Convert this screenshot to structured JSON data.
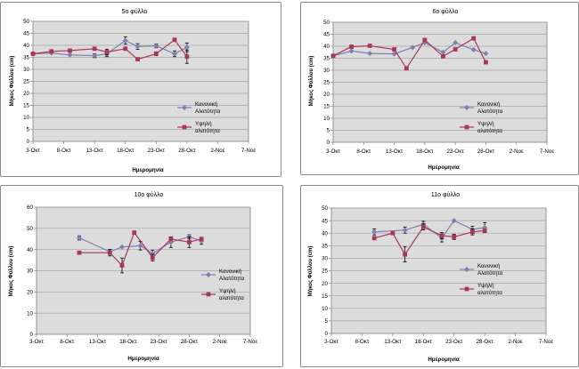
{
  "colors": {
    "normal": "#7f7fb0",
    "high": "#a8365f",
    "plot_bg": "#dcdcdc",
    "grid": "#a6a6a6",
    "axis": "#808080",
    "text": "#000000"
  },
  "chart_data": [
    {
      "type": "line",
      "title": "5ο φύλλο",
      "xlabel": "Ημερομηνία",
      "ylabel": "Μήκος Φύλλου (cm)",
      "x_tick_labels": [
        "3-Οκτ",
        "8-Οκτ",
        "13-Οκτ",
        "18-Οκτ",
        "23-Οκτ",
        "28-Οκτ",
        "2-Νοε",
        "7-Νοε"
      ],
      "x_range": [
        0,
        35
      ],
      "ylim": [
        0,
        50
      ],
      "y_ticks": [
        0,
        5,
        10,
        15,
        20,
        25,
        30,
        35,
        40,
        45,
        50
      ],
      "y_tick_labels": [
        "0",
        "5",
        "10",
        "15",
        "20",
        "25",
        "30",
        "35",
        "40",
        "45",
        "50"
      ],
      "legend_position": "right",
      "series": [
        {
          "name": "Κανονική Αλατότητα",
          "name_lines": [
            "Κανονική",
            "Αλατότητα"
          ],
          "marker": "diamond",
          "x": [
            0,
            3,
            6,
            10,
            12,
            15,
            17,
            20,
            23,
            25
          ],
          "y": [
            36.5,
            36.8,
            36.0,
            35.7,
            36.5,
            42.0,
            39.5,
            39.8,
            36.5,
            39.2
          ],
          "err": [
            0,
            0,
            0,
            0.8,
            1.2,
            1.5,
            1.2,
            0.8,
            1.2,
            1.8
          ]
        },
        {
          "name": "Υψηλή αλατότητα",
          "name_lines": [
            "Υψηλή",
            "αλατότητα"
          ],
          "marker": "square",
          "x": [
            0,
            3,
            6,
            10,
            12,
            15,
            17,
            20,
            23,
            25
          ],
          "y": [
            36.5,
            37.5,
            37.8,
            38.6,
            37.2,
            38.6,
            34.2,
            36.5,
            42.3,
            35.3
          ],
          "err": [
            0,
            0,
            0,
            0,
            1.2,
            0,
            0,
            0.8,
            0,
            2.8
          ]
        }
      ]
    },
    {
      "type": "line",
      "title": "6ο φύλλο",
      "xlabel": "Ημερομηνία",
      "ylabel": "Μήκος Φύλλου (cm)",
      "x_tick_labels": [
        "3-Οκτ",
        "8-Οκτ",
        "13-Οκτ",
        "18-Οκτ",
        "23-Οκτ",
        "28-Οκτ",
        "2-Νοε",
        "7-Νοε"
      ],
      "x_range": [
        0,
        35
      ],
      "ylim": [
        0,
        50
      ],
      "y_ticks": [
        0,
        5,
        10,
        15,
        20,
        25,
        30,
        35,
        40,
        45,
        50
      ],
      "y_tick_labels": [
        "0",
        "5",
        "10",
        "15",
        "20",
        "25",
        "30",
        "35",
        "40",
        "45",
        "50"
      ],
      "legend_position": "right",
      "series": [
        {
          "name": "Κανονική Αλατότητα",
          "name_lines": [
            "Κανονική",
            "Αλατότητα"
          ],
          "marker": "diamond",
          "x": [
            0,
            3,
            6,
            10,
            13,
            15,
            18,
            20,
            23,
            25
          ],
          "y": [
            36.0,
            38.0,
            37.0,
            36.8,
            39.5,
            41.5,
            37.5,
            41.5,
            38.5,
            37.0
          ],
          "err": [
            0,
            0,
            0,
            0,
            0,
            0,
            0,
            0,
            0,
            0
          ]
        },
        {
          "name": "Υψηλή αλατότητα",
          "name_lines": [
            "Υψηλή",
            "αλατότητα"
          ],
          "marker": "square",
          "x": [
            0,
            3,
            6,
            10,
            12,
            15,
            18,
            20,
            23,
            25
          ],
          "y": [
            36.0,
            39.8,
            40.2,
            38.7,
            30.8,
            42.6,
            35.8,
            38.7,
            43.3,
            33.3
          ],
          "err": [
            0,
            0,
            0,
            0,
            0,
            0,
            0,
            0,
            0,
            0
          ]
        }
      ]
    },
    {
      "type": "line",
      "title": "10ο φύλλο",
      "xlabel": "Ημερομηνία",
      "ylabel": "Μήκος Φύλλου (cm)",
      "x_tick_labels": [
        "3-Οκτ",
        "8-Οκτ",
        "13-Οκτ",
        "18-Οκτ",
        "23-Οκτ",
        "28-Οκτ",
        "2-Νοε",
        "7-Νοε"
      ],
      "x_range": [
        0,
        35
      ],
      "ylim": [
        0,
        60
      ],
      "y_ticks": [
        0,
        10,
        20,
        30,
        40,
        50,
        60
      ],
      "y_tick_labels": [
        "0",
        "10",
        "20",
        "30",
        "40",
        "50",
        "60"
      ],
      "legend_position": "right",
      "series": [
        {
          "name": "Κανονική Αλατότητα",
          "name_lines": [
            "Κανονική",
            "Αλατότητα"
          ],
          "marker": "diamond",
          "x": [
            7,
            12,
            14,
            17,
            19,
            22,
            25,
            27
          ],
          "y": [
            45.5,
            39.0,
            41.2,
            41.8,
            38.2,
            43.5,
            46.0,
            44.0
          ],
          "err": [
            1.0,
            1.0,
            0,
            2.0,
            1.5,
            2.5,
            1.0,
            1.5
          ]
        },
        {
          "name": "Υψηλή αλατότητα",
          "name_lines": [
            "Υψηλή",
            "αλατότητα"
          ],
          "marker": "square",
          "x": [
            7,
            12,
            14,
            16,
            19,
            22,
            25,
            27
          ],
          "y": [
            38.5,
            38.5,
            32.5,
            48.0,
            36.2,
            45.0,
            43.5,
            45.0
          ],
          "err": [
            0,
            1.5,
            3.5,
            0,
            1.5,
            0,
            2.5,
            0
          ]
        }
      ]
    },
    {
      "type": "line",
      "title": "11ο φύλλο",
      "xlabel": "Ημερομηνία",
      "ylabel": "Μήκος Φύλλου (cm)",
      "x_tick_labels": [
        "3-Οκτ",
        "8-Οκτ",
        "13-Οκτ",
        "18-Οκτ",
        "23-Οκτ",
        "28-Οκτ",
        "2-Νοε",
        "7-Νοε"
      ],
      "x_range": [
        0,
        35
      ],
      "ylim": [
        0,
        50
      ],
      "y_ticks": [
        0,
        5,
        10,
        15,
        20,
        25,
        30,
        35,
        40,
        45,
        50
      ],
      "y_tick_labels": [
        "0",
        "5",
        "10",
        "15",
        "20",
        "25",
        "30",
        "35",
        "40",
        "45",
        "50"
      ],
      "legend_position": "right",
      "series": [
        {
          "name": "Κανονική Αλατότητα",
          "name_lines": [
            "Κανονική",
            "Αλατότητα"
          ],
          "marker": "diamond",
          "x": [
            7,
            12,
            15,
            18,
            20,
            23,
            25
          ],
          "y": [
            40.5,
            41.2,
            43.5,
            38.0,
            45.0,
            41.5,
            42.2
          ],
          "err": [
            1.2,
            1.2,
            1.2,
            1.5,
            0,
            1.2,
            2.0
          ]
        },
        {
          "name": "Υψηλή αλατότητα",
          "name_lines": [
            "Υψηλή",
            "αλατότητα"
          ],
          "marker": "square",
          "x": [
            7,
            10,
            12,
            15,
            18,
            20,
            23,
            25
          ],
          "y": [
            38.0,
            40.0,
            31.5,
            42.5,
            39.0,
            38.5,
            40.5,
            41.0
          ],
          "err": [
            0,
            0,
            3.0,
            1.2,
            1.2,
            1.0,
            1.2,
            0
          ]
        }
      ]
    }
  ]
}
